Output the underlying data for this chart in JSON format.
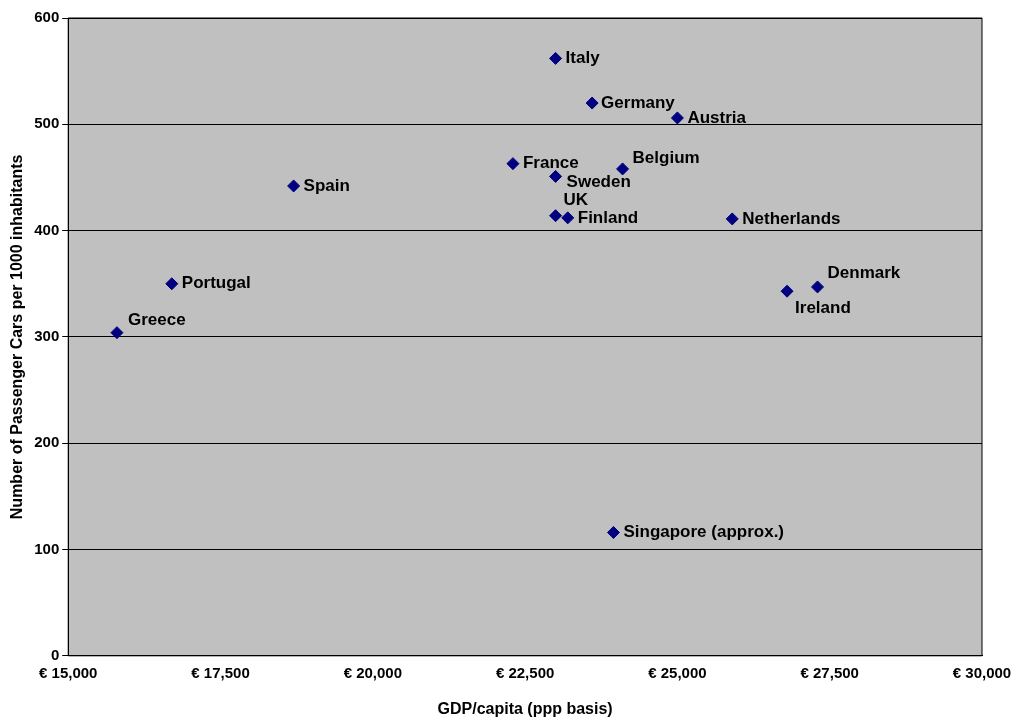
{
  "chart_data": {
    "type": "scatter",
    "xlabel": "GDP/capita (ppp basis)",
    "ylabel": "Number of Passenger Cars per 1000 inhabitants",
    "xlim": [
      15000,
      30000
    ],
    "ylim": [
      0,
      600
    ],
    "xticks": [
      {
        "value": 15000,
        "label": "€ 15,000"
      },
      {
        "value": 17500,
        "label": "€ 17,500"
      },
      {
        "value": 20000,
        "label": "€ 20,000"
      },
      {
        "value": 22500,
        "label": "€ 22,500"
      },
      {
        "value": 25000,
        "label": "€ 25,000"
      },
      {
        "value": 27500,
        "label": "€ 27,500"
      },
      {
        "value": 30000,
        "label": "€ 30,000"
      }
    ],
    "yticks": [
      0,
      100,
      200,
      300,
      400,
      500,
      600
    ],
    "grid": "y",
    "legend": false,
    "marker": "diamond",
    "series": [
      {
        "name": "Greece",
        "color": "#000080",
        "x": [
          15800
        ],
        "values": [
          304
        ]
      },
      {
        "name": "Portugal",
        "color": "#000080",
        "x": [
          16700
        ],
        "values": [
          350
        ]
      },
      {
        "name": "Spain",
        "color": "#000080",
        "x": [
          18700
        ],
        "values": [
          442
        ]
      },
      {
        "name": "France",
        "color": "#000080",
        "x": [
          22300
        ],
        "values": [
          463
        ]
      },
      {
        "name": "Italy",
        "color": "#000080",
        "x": [
          23000
        ],
        "values": [
          562
        ]
      },
      {
        "name": "Sweden",
        "color": "#000080",
        "x": [
          23000
        ],
        "values": [
          451
        ]
      },
      {
        "name": "UK",
        "color": "#000080",
        "x": [
          23000
        ],
        "values": [
          414
        ]
      },
      {
        "name": "Finland",
        "color": "#000080",
        "x": [
          23200
        ],
        "values": [
          412
        ]
      },
      {
        "name": "Germany",
        "color": "#000080",
        "x": [
          23600
        ],
        "values": [
          520
        ]
      },
      {
        "name": "Belgium",
        "color": "#000080",
        "x": [
          24100
        ],
        "values": [
          458
        ]
      },
      {
        "name": "Austria",
        "color": "#000080",
        "x": [
          25000
        ],
        "values": [
          506
        ]
      },
      {
        "name": "Netherlands",
        "color": "#000080",
        "x": [
          25900
        ],
        "values": [
          411
        ]
      },
      {
        "name": "Ireland",
        "color": "#000080",
        "x": [
          26800
        ],
        "values": [
          343
        ]
      },
      {
        "name": "Denmark",
        "color": "#000080",
        "x": [
          27300
        ],
        "values": [
          347
        ]
      },
      {
        "name": "Singapore (approx.)",
        "color": "#000080",
        "x": [
          23950
        ],
        "values": [
          116
        ]
      }
    ]
  }
}
